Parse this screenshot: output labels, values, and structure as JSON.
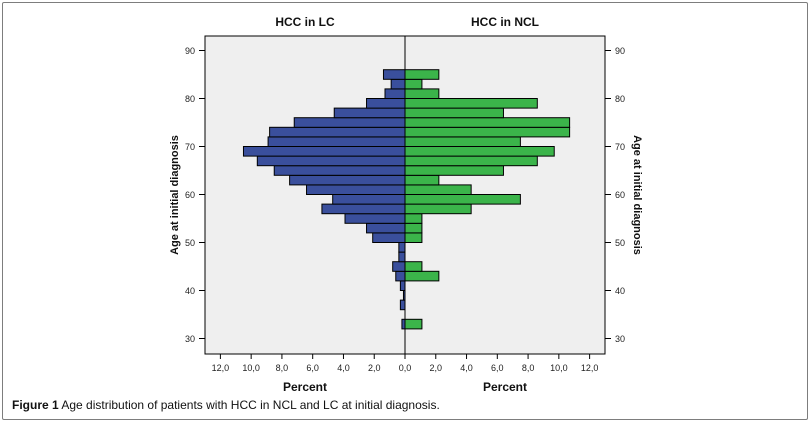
{
  "chart_data": {
    "type": "population-pyramid",
    "left_panel": {
      "title": "HCC in LC",
      "color": "#3a4f9c"
    },
    "right_panel": {
      "title": "HCC in NCL",
      "color": "#3bb44a"
    },
    "ylabel": "Age at initial diagnosis",
    "xlabel": "Percent",
    "ylim": [
      27,
      94
    ],
    "yticks": [
      30,
      40,
      50,
      60,
      70,
      80,
      90
    ],
    "xlim": [
      0,
      13
    ],
    "xticks": [
      "12,0",
      "10,0",
      "8,0",
      "6,0",
      "4,0",
      "2,0",
      "0,0",
      "2,0",
      "4,0",
      "6,0",
      "8,0",
      "10,0",
      "12,0"
    ],
    "bin_width": 2,
    "right_xticks": [
      "0,0",
      "2,0",
      "4,0",
      "6,0",
      "8,0",
      "10,0",
      "12,0"
    ],
    "age_bins": [
      33,
      35,
      37,
      39,
      41,
      43,
      45,
      47,
      49,
      51,
      53,
      55,
      57,
      59,
      61,
      63,
      65,
      67,
      69,
      71,
      73,
      75,
      77,
      79,
      81,
      83,
      85
    ],
    "lc_values": [
      0.2,
      0,
      0.3,
      0.1,
      0.3,
      0.6,
      0.8,
      0.4,
      0.4,
      2.1,
      2.5,
      3.9,
      5.4,
      4.7,
      6.4,
      7.5,
      8.5,
      9.6,
      10.5,
      8.9,
      8.8,
      7.2,
      4.6,
      2.5,
      1.3,
      0.9,
      1.4
    ],
    "ncl_values": [
      1.1,
      0,
      0,
      0,
      0,
      2.2,
      1.1,
      0,
      0,
      1.1,
      1.1,
      1.1,
      4.3,
      7.5,
      4.3,
      2.2,
      6.4,
      8.6,
      9.7,
      7.5,
      10.7,
      10.7,
      6.4,
      8.6,
      2.2,
      1.1,
      2.2
    ],
    "caption_label": "Figure 1",
    "caption_text": "Age distribution of patients with HCC in NCL and LC at initial diagnosis."
  }
}
